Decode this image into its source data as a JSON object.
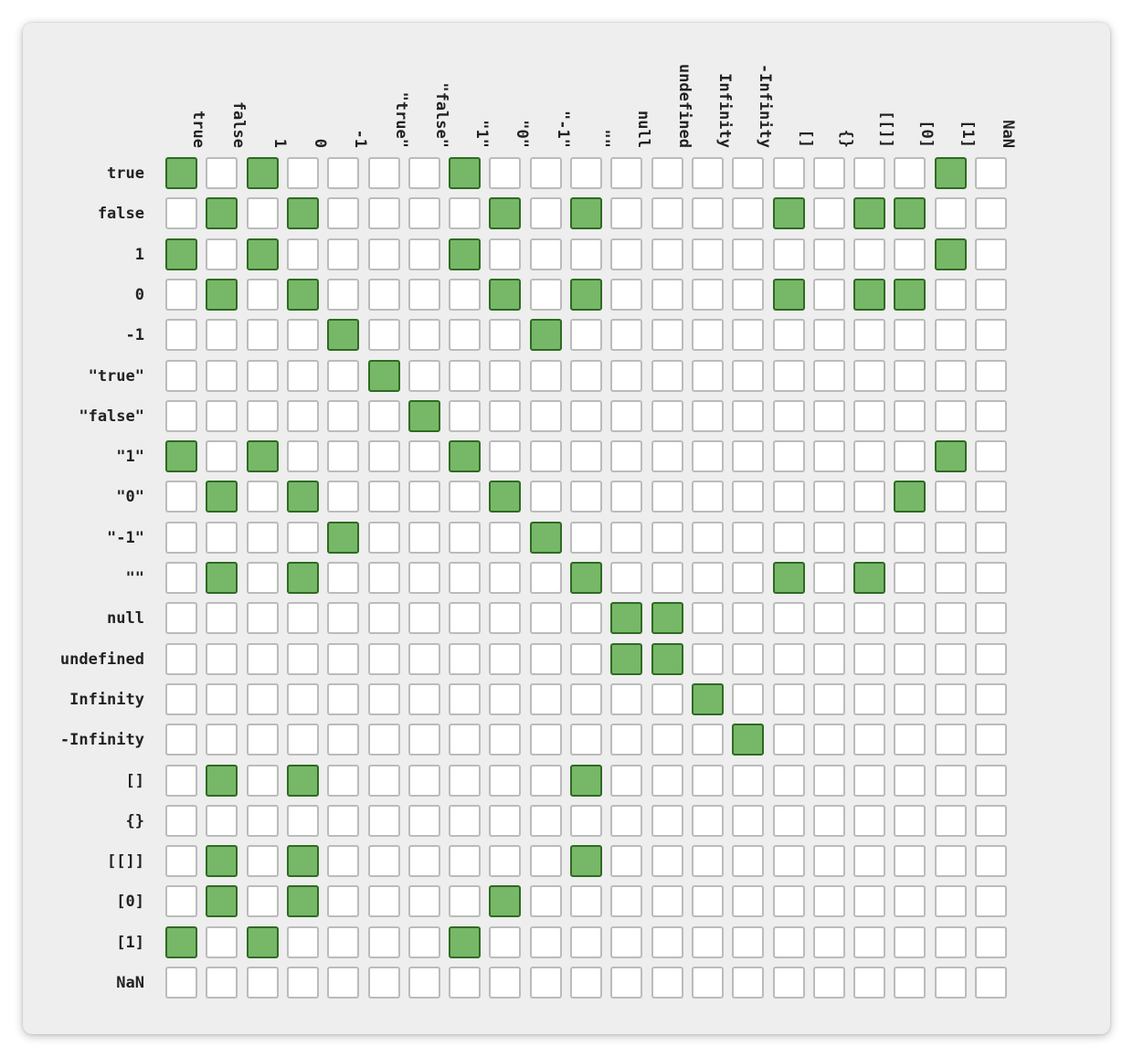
{
  "chart_data": {
    "type": "heatmap",
    "title": "",
    "labels": [
      "true",
      "false",
      "1",
      "0",
      "-1",
      "\"true\"",
      "\"false\"",
      "\"1\"",
      "\"0\"",
      "\"-1\"",
      "\"\"",
      "null",
      "undefined",
      "Infinity",
      "-Infinity",
      "[]",
      "{}",
      "[[]]",
      "[0]",
      "[1]",
      "NaN"
    ],
    "values": [
      [
        1,
        0,
        1,
        0,
        0,
        0,
        0,
        1,
        0,
        0,
        0,
        0,
        0,
        0,
        0,
        0,
        0,
        0,
        0,
        1,
        0
      ],
      [
        0,
        1,
        0,
        1,
        0,
        0,
        0,
        0,
        1,
        0,
        1,
        0,
        0,
        0,
        0,
        1,
        0,
        1,
        1,
        0,
        0
      ],
      [
        1,
        0,
        1,
        0,
        0,
        0,
        0,
        1,
        0,
        0,
        0,
        0,
        0,
        0,
        0,
        0,
        0,
        0,
        0,
        1,
        0
      ],
      [
        0,
        1,
        0,
        1,
        0,
        0,
        0,
        0,
        1,
        0,
        1,
        0,
        0,
        0,
        0,
        1,
        0,
        1,
        1,
        0,
        0
      ],
      [
        0,
        0,
        0,
        0,
        1,
        0,
        0,
        0,
        0,
        1,
        0,
        0,
        0,
        0,
        0,
        0,
        0,
        0,
        0,
        0,
        0
      ],
      [
        0,
        0,
        0,
        0,
        0,
        1,
        0,
        0,
        0,
        0,
        0,
        0,
        0,
        0,
        0,
        0,
        0,
        0,
        0,
        0,
        0
      ],
      [
        0,
        0,
        0,
        0,
        0,
        0,
        1,
        0,
        0,
        0,
        0,
        0,
        0,
        0,
        0,
        0,
        0,
        0,
        0,
        0,
        0
      ],
      [
        1,
        0,
        1,
        0,
        0,
        0,
        0,
        1,
        0,
        0,
        0,
        0,
        0,
        0,
        0,
        0,
        0,
        0,
        0,
        1,
        0
      ],
      [
        0,
        1,
        0,
        1,
        0,
        0,
        0,
        0,
        1,
        0,
        0,
        0,
        0,
        0,
        0,
        0,
        0,
        0,
        1,
        0,
        0
      ],
      [
        0,
        0,
        0,
        0,
        1,
        0,
        0,
        0,
        0,
        1,
        0,
        0,
        0,
        0,
        0,
        0,
        0,
        0,
        0,
        0,
        0
      ],
      [
        0,
        1,
        0,
        1,
        0,
        0,
        0,
        0,
        0,
        0,
        1,
        0,
        0,
        0,
        0,
        1,
        0,
        1,
        0,
        0,
        0
      ],
      [
        0,
        0,
        0,
        0,
        0,
        0,
        0,
        0,
        0,
        0,
        0,
        1,
        1,
        0,
        0,
        0,
        0,
        0,
        0,
        0,
        0
      ],
      [
        0,
        0,
        0,
        0,
        0,
        0,
        0,
        0,
        0,
        0,
        0,
        1,
        1,
        0,
        0,
        0,
        0,
        0,
        0,
        0,
        0
      ],
      [
        0,
        0,
        0,
        0,
        0,
        0,
        0,
        0,
        0,
        0,
        0,
        0,
        0,
        1,
        0,
        0,
        0,
        0,
        0,
        0,
        0
      ],
      [
        0,
        0,
        0,
        0,
        0,
        0,
        0,
        0,
        0,
        0,
        0,
        0,
        0,
        0,
        1,
        0,
        0,
        0,
        0,
        0,
        0
      ],
      [
        0,
        1,
        0,
        1,
        0,
        0,
        0,
        0,
        0,
        0,
        1,
        0,
        0,
        0,
        0,
        0,
        0,
        0,
        0,
        0,
        0
      ],
      [
        0,
        0,
        0,
        0,
        0,
        0,
        0,
        0,
        0,
        0,
        0,
        0,
        0,
        0,
        0,
        0,
        0,
        0,
        0,
        0,
        0
      ],
      [
        0,
        1,
        0,
        1,
        0,
        0,
        0,
        0,
        0,
        0,
        1,
        0,
        0,
        0,
        0,
        0,
        0,
        0,
        0,
        0,
        0
      ],
      [
        0,
        1,
        0,
        1,
        0,
        0,
        0,
        0,
        1,
        0,
        0,
        0,
        0,
        0,
        0,
        0,
        0,
        0,
        0,
        0,
        0
      ],
      [
        1,
        0,
        1,
        0,
        0,
        0,
        0,
        1,
        0,
        0,
        0,
        0,
        0,
        0,
        0,
        0,
        0,
        0,
        0,
        0,
        0
      ],
      [
        0,
        0,
        0,
        0,
        0,
        0,
        0,
        0,
        0,
        0,
        0,
        0,
        0,
        0,
        0,
        0,
        0,
        0,
        0,
        0,
        0
      ]
    ],
    "colors": {
      "on_fill": "#77b868",
      "on_border": "#2e6b22",
      "off_fill": "#ffffff",
      "off_border": "#bbbbbb",
      "background": "#eeeeee"
    }
  }
}
